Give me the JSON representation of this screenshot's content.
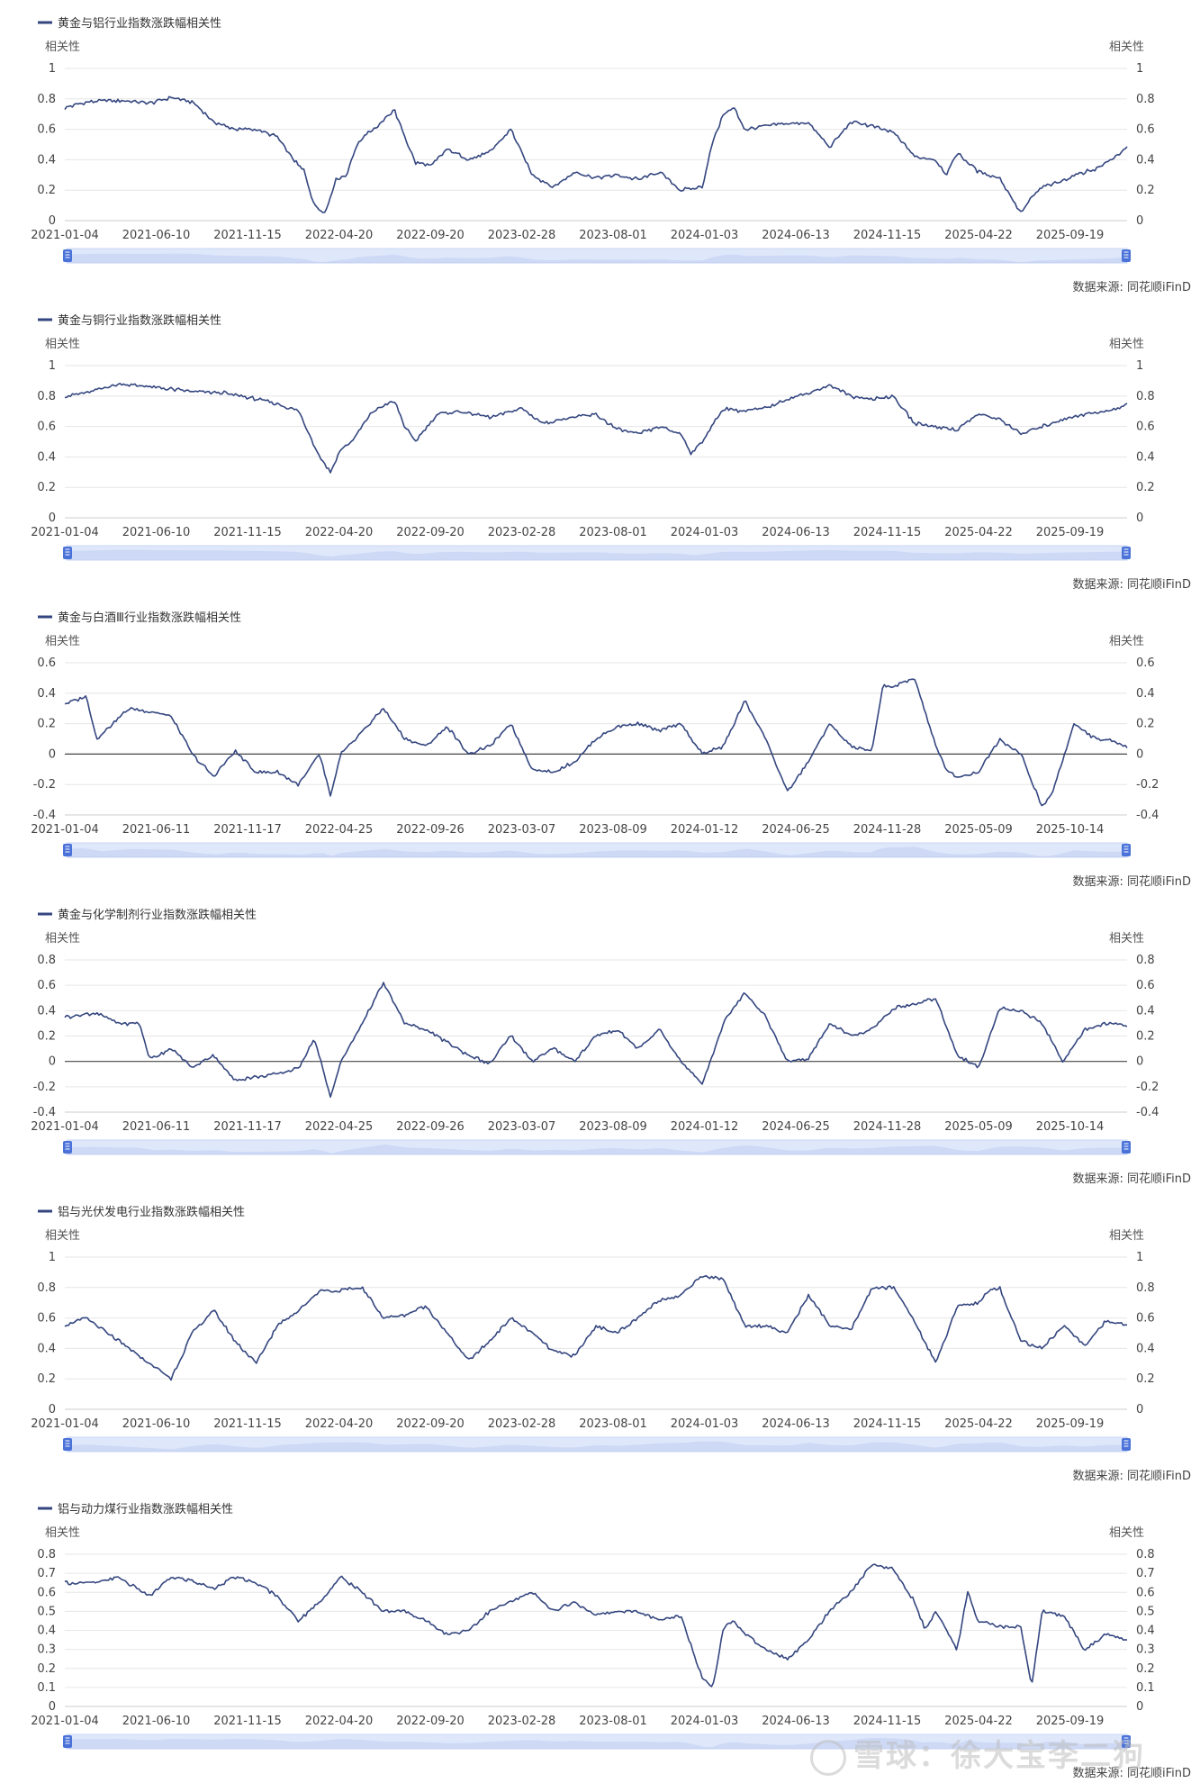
{
  "colors": {
    "line": "#34467f",
    "grid": "#e6e6e6",
    "zero_line": "#444444",
    "slider_fill": "#dfe8fb",
    "slider_area": "#b7c8ee",
    "slider_handle": "#4a72d8"
  },
  "source_label": "数据来源: 同花顺iFinD",
  "watermark": "雪球：徐大宝李二狗",
  "chart_data": [
    {
      "type": "line",
      "title": "黄金与铝行业指数涨跌幅相关性",
      "ylabel_left": "相关性",
      "ylabel_right": "相关性",
      "ylim": [
        0,
        1
      ],
      "yticks": [
        "0",
        "0.2",
        "0.4",
        "0.6",
        "0.8",
        "1"
      ],
      "xticks": [
        "2021-01-04",
        "2021-06-10",
        "2021-11-15",
        "2022-04-20",
        "2022-09-20",
        "2023-02-28",
        "2023-08-01",
        "2024-01-03",
        "2024-06-13",
        "2024-11-15",
        "2025-04-22",
        "2025-09-19"
      ],
      "grid": true,
      "legend": "top-left",
      "series": [
        {
          "name": "黄金与铝行业指数涨跌幅相关性",
          "t": [
            0,
            0.02,
            0.05,
            0.08,
            0.1,
            0.12,
            0.14,
            0.16,
            0.18,
            0.2,
            0.215,
            0.225,
            0.235,
            0.245,
            0.255,
            0.265,
            0.275,
            0.285,
            0.295,
            0.31,
            0.32,
            0.33,
            0.345,
            0.36,
            0.38,
            0.4,
            0.42,
            0.44,
            0.46,
            0.48,
            0.5,
            0.52,
            0.54,
            0.56,
            0.58,
            0.6,
            0.61,
            0.62,
            0.63,
            0.64,
            0.66,
            0.68,
            0.7,
            0.72,
            0.74,
            0.76,
            0.78,
            0.8,
            0.82,
            0.83,
            0.84,
            0.86,
            0.88,
            0.9,
            0.91,
            0.92,
            0.935,
            0.95,
            0.97,
            0.985,
            1
          ],
          "values": [
            0.74,
            0.78,
            0.79,
            0.77,
            0.81,
            0.78,
            0.65,
            0.6,
            0.6,
            0.55,
            0.4,
            0.33,
            0.1,
            0.05,
            0.27,
            0.3,
            0.5,
            0.58,
            0.62,
            0.73,
            0.55,
            0.38,
            0.36,
            0.47,
            0.4,
            0.45,
            0.6,
            0.3,
            0.22,
            0.32,
            0.28,
            0.3,
            0.27,
            0.32,
            0.2,
            0.22,
            0.52,
            0.7,
            0.74,
            0.6,
            0.62,
            0.64,
            0.64,
            0.48,
            0.65,
            0.62,
            0.58,
            0.42,
            0.4,
            0.3,
            0.45,
            0.32,
            0.28,
            0.05,
            0.15,
            0.22,
            0.25,
            0.3,
            0.34,
            0.4,
            0.48
          ]
        }
      ],
      "slider": {
        "start": "2021-01-04",
        "end": "2025-09-19"
      }
    },
    {
      "type": "line",
      "title": "黄金与铜行业指数涨跌幅相关性",
      "ylabel_left": "相关性",
      "ylabel_right": "相关性",
      "ylim": [
        0,
        1
      ],
      "yticks": [
        "0",
        "0.2",
        "0.4",
        "0.6",
        "0.8",
        "1"
      ],
      "xticks": [
        "2021-01-04",
        "2021-06-10",
        "2021-11-15",
        "2022-04-20",
        "2022-09-20",
        "2023-02-28",
        "2023-08-01",
        "2024-01-03",
        "2024-06-13",
        "2024-11-15",
        "2025-04-22",
        "2025-09-19"
      ],
      "grid": true,
      "legend": "top-left",
      "series": [
        {
          "name": "黄金与铜行业指数涨跌幅相关性",
          "t": [
            0,
            0.02,
            0.05,
            0.08,
            0.12,
            0.15,
            0.18,
            0.2,
            0.22,
            0.23,
            0.24,
            0.25,
            0.26,
            0.27,
            0.29,
            0.31,
            0.32,
            0.33,
            0.35,
            0.37,
            0.4,
            0.43,
            0.45,
            0.47,
            0.5,
            0.52,
            0.54,
            0.56,
            0.58,
            0.59,
            0.6,
            0.62,
            0.64,
            0.66,
            0.68,
            0.7,
            0.72,
            0.74,
            0.76,
            0.78,
            0.8,
            0.82,
            0.84,
            0.86,
            0.88,
            0.9,
            0.92,
            0.94,
            0.96,
            0.98,
            1
          ],
          "values": [
            0.8,
            0.82,
            0.88,
            0.86,
            0.83,
            0.82,
            0.78,
            0.75,
            0.7,
            0.55,
            0.4,
            0.3,
            0.45,
            0.5,
            0.7,
            0.77,
            0.6,
            0.5,
            0.68,
            0.7,
            0.66,
            0.72,
            0.62,
            0.65,
            0.68,
            0.58,
            0.55,
            0.6,
            0.55,
            0.42,
            0.5,
            0.72,
            0.7,
            0.72,
            0.78,
            0.82,
            0.87,
            0.8,
            0.78,
            0.8,
            0.62,
            0.6,
            0.58,
            0.68,
            0.65,
            0.55,
            0.6,
            0.65,
            0.68,
            0.7,
            0.74
          ]
        }
      ],
      "slider": {
        "start": "2021-01-04",
        "end": "2025-09-19"
      }
    },
    {
      "type": "line",
      "title": "黄金与白酒Ⅲ行业指数涨跌幅相关性",
      "ylabel_left": "相关性",
      "ylabel_right": "相关性",
      "ylim": [
        -0.4,
        0.6
      ],
      "yticks": [
        "-0.4",
        "-0.2",
        "0",
        "0.2",
        "0.4",
        "0.6"
      ],
      "xticks": [
        "2021-01-04",
        "2021-06-11",
        "2021-11-17",
        "2022-04-25",
        "2022-09-26",
        "2023-03-07",
        "2023-08-09",
        "2024-01-12",
        "2024-06-25",
        "2024-11-28",
        "2025-05-09",
        "2025-10-14"
      ],
      "grid": true,
      "zero_line": true,
      "legend": "top-left",
      "series": [
        {
          "name": "黄金与白酒Ⅲ行业指数涨跌幅相关性",
          "t": [
            0,
            0.02,
            0.03,
            0.06,
            0.08,
            0.1,
            0.12,
            0.14,
            0.16,
            0.18,
            0.2,
            0.22,
            0.24,
            0.25,
            0.26,
            0.28,
            0.3,
            0.32,
            0.34,
            0.36,
            0.38,
            0.4,
            0.42,
            0.44,
            0.46,
            0.48,
            0.5,
            0.52,
            0.54,
            0.56,
            0.58,
            0.6,
            0.62,
            0.64,
            0.66,
            0.68,
            0.7,
            0.72,
            0.74,
            0.76,
            0.77,
            0.78,
            0.8,
            0.82,
            0.83,
            0.84,
            0.86,
            0.88,
            0.9,
            0.92,
            0.93,
            0.95,
            0.97,
            0.99,
            1
          ],
          "values": [
            0.33,
            0.38,
            0.1,
            0.3,
            0.28,
            0.25,
            0.0,
            -0.15,
            0.02,
            -0.12,
            -0.12,
            -0.2,
            0.0,
            -0.28,
            0.0,
            0.15,
            0.3,
            0.1,
            0.05,
            0.18,
            0.0,
            0.05,
            0.2,
            -0.1,
            -0.12,
            -0.05,
            0.1,
            0.18,
            0.2,
            0.15,
            0.2,
            0.0,
            0.05,
            0.35,
            0.1,
            -0.25,
            -0.05,
            0.2,
            0.05,
            0.02,
            0.45,
            0.44,
            0.5,
            0.05,
            -0.1,
            -0.15,
            -0.12,
            0.1,
            0.0,
            -0.35,
            -0.25,
            0.2,
            0.1,
            0.08,
            0.05
          ]
        }
      ],
      "slider": {
        "start": "2021-01-04",
        "end": "2025-10-14"
      }
    },
    {
      "type": "line",
      "title": "黄金与化学制剂行业指数涨跌幅相关性",
      "ylabel_left": "相关性",
      "ylabel_right": "相关性",
      "ylim": [
        -0.4,
        0.8
      ],
      "yticks": [
        "-0.4",
        "-0.2",
        "0",
        "0.2",
        "0.4",
        "0.6",
        "0.8"
      ],
      "xticks": [
        "2021-01-04",
        "2021-06-11",
        "2021-11-17",
        "2022-04-25",
        "2022-09-26",
        "2023-03-07",
        "2023-08-09",
        "2024-01-12",
        "2024-06-25",
        "2024-11-28",
        "2025-05-09",
        "2025-10-14"
      ],
      "grid": true,
      "zero_line": true,
      "legend": "top-left",
      "series": [
        {
          "name": "黄金与化学制剂行业指数涨跌幅相关性",
          "t": [
            0,
            0.03,
            0.05,
            0.07,
            0.08,
            0.1,
            0.12,
            0.14,
            0.16,
            0.18,
            0.2,
            0.22,
            0.235,
            0.25,
            0.26,
            0.28,
            0.3,
            0.32,
            0.34,
            0.36,
            0.38,
            0.4,
            0.42,
            0.44,
            0.46,
            0.48,
            0.5,
            0.52,
            0.54,
            0.56,
            0.58,
            0.6,
            0.62,
            0.64,
            0.66,
            0.68,
            0.7,
            0.72,
            0.74,
            0.76,
            0.78,
            0.8,
            0.82,
            0.84,
            0.86,
            0.88,
            0.9,
            0.92,
            0.94,
            0.96,
            0.98,
            1
          ],
          "values": [
            0.35,
            0.38,
            0.3,
            0.3,
            0.02,
            0.1,
            -0.05,
            0.05,
            -0.15,
            -0.12,
            -0.1,
            -0.05,
            0.18,
            -0.28,
            0.0,
            0.3,
            0.62,
            0.3,
            0.25,
            0.15,
            0.05,
            -0.02,
            0.2,
            0.0,
            0.1,
            0.0,
            0.2,
            0.25,
            0.1,
            0.25,
            0.0,
            -0.18,
            0.3,
            0.55,
            0.35,
            0.0,
            0.02,
            0.3,
            0.2,
            0.25,
            0.42,
            0.45,
            0.5,
            0.05,
            -0.05,
            0.42,
            0.4,
            0.3,
            0.0,
            0.25,
            0.3,
            0.28
          ]
        }
      ],
      "slider": {
        "start": "2021-01-04",
        "end": "2025-10-14"
      }
    },
    {
      "type": "line",
      "title": "铝与光伏发电行业指数涨跌幅相关性",
      "ylabel_left": "相关性",
      "ylabel_right": "相关性",
      "ylim": [
        0,
        1
      ],
      "yticks": [
        "0",
        "0.2",
        "0.4",
        "0.6",
        "0.8",
        "1"
      ],
      "xticks": [
        "2021-01-04",
        "2021-06-10",
        "2021-11-15",
        "2022-04-20",
        "2022-09-20",
        "2023-02-28",
        "2023-08-01",
        "2024-01-03",
        "2024-06-13",
        "2024-11-15",
        "2025-04-22",
        "2025-09-19"
      ],
      "grid": true,
      "legend": "top-left",
      "series": [
        {
          "name": "铝与光伏发电行业指数涨跌幅相关性",
          "t": [
            0,
            0.02,
            0.05,
            0.08,
            0.1,
            0.12,
            0.14,
            0.16,
            0.18,
            0.2,
            0.22,
            0.24,
            0.26,
            0.28,
            0.3,
            0.32,
            0.34,
            0.36,
            0.38,
            0.4,
            0.42,
            0.44,
            0.46,
            0.48,
            0.5,
            0.52,
            0.54,
            0.56,
            0.58,
            0.6,
            0.62,
            0.64,
            0.66,
            0.68,
            0.7,
            0.72,
            0.74,
            0.76,
            0.78,
            0.8,
            0.82,
            0.84,
            0.86,
            0.87,
            0.88,
            0.9,
            0.92,
            0.94,
            0.96,
            0.98,
            1
          ],
          "values": [
            0.55,
            0.6,
            0.45,
            0.3,
            0.2,
            0.5,
            0.65,
            0.45,
            0.3,
            0.55,
            0.65,
            0.78,
            0.78,
            0.8,
            0.6,
            0.62,
            0.68,
            0.5,
            0.32,
            0.45,
            0.6,
            0.5,
            0.38,
            0.35,
            0.55,
            0.5,
            0.6,
            0.72,
            0.75,
            0.88,
            0.85,
            0.55,
            0.55,
            0.5,
            0.75,
            0.55,
            0.52,
            0.8,
            0.8,
            0.58,
            0.3,
            0.68,
            0.7,
            0.78,
            0.8,
            0.45,
            0.4,
            0.55,
            0.42,
            0.58,
            0.55
          ]
        }
      ],
      "slider": {
        "start": "2021-01-04",
        "end": "2025-09-19"
      }
    },
    {
      "type": "line",
      "title": "铝与动力煤行业指数涨跌幅相关性",
      "ylabel_left": "相关性",
      "ylabel_right": "相关性",
      "ylim": [
        0,
        0.8
      ],
      "yticks": [
        "0",
        "0.1",
        "0.2",
        "0.3",
        "0.4",
        "0.5",
        "0.6",
        "0.7",
        "0.8"
      ],
      "xticks": [
        "2021-01-04",
        "2021-06-10",
        "2021-11-15",
        "2022-04-20",
        "2022-09-20",
        "2023-02-28",
        "2023-08-01",
        "2024-01-03",
        "2024-06-13",
        "2024-11-15",
        "2025-04-22",
        "2025-09-19"
      ],
      "grid": true,
      "legend": "top-left",
      "series": [
        {
          "name": "铝与动力煤行业指数涨跌幅相关性",
          "t": [
            0,
            0.03,
            0.05,
            0.08,
            0.1,
            0.12,
            0.14,
            0.16,
            0.18,
            0.2,
            0.22,
            0.24,
            0.26,
            0.28,
            0.3,
            0.32,
            0.34,
            0.36,
            0.38,
            0.4,
            0.42,
            0.44,
            0.46,
            0.48,
            0.5,
            0.52,
            0.54,
            0.56,
            0.58,
            0.6,
            0.61,
            0.62,
            0.63,
            0.64,
            0.66,
            0.68,
            0.7,
            0.72,
            0.74,
            0.76,
            0.78,
            0.8,
            0.81,
            0.82,
            0.84,
            0.85,
            0.86,
            0.88,
            0.9,
            0.91,
            0.92,
            0.94,
            0.96,
            0.98,
            1
          ],
          "values": [
            0.65,
            0.65,
            0.68,
            0.58,
            0.68,
            0.66,
            0.62,
            0.68,
            0.65,
            0.58,
            0.45,
            0.55,
            0.68,
            0.6,
            0.5,
            0.5,
            0.45,
            0.38,
            0.4,
            0.5,
            0.55,
            0.6,
            0.5,
            0.55,
            0.48,
            0.5,
            0.5,
            0.45,
            0.48,
            0.15,
            0.1,
            0.42,
            0.45,
            0.38,
            0.3,
            0.25,
            0.35,
            0.5,
            0.6,
            0.75,
            0.72,
            0.55,
            0.4,
            0.5,
            0.3,
            0.6,
            0.45,
            0.42,
            0.42,
            0.1,
            0.5,
            0.48,
            0.3,
            0.38,
            0.35
          ]
        }
      ],
      "slider": {
        "start": "2021-01-04",
        "end": "2025-09-19"
      }
    }
  ]
}
